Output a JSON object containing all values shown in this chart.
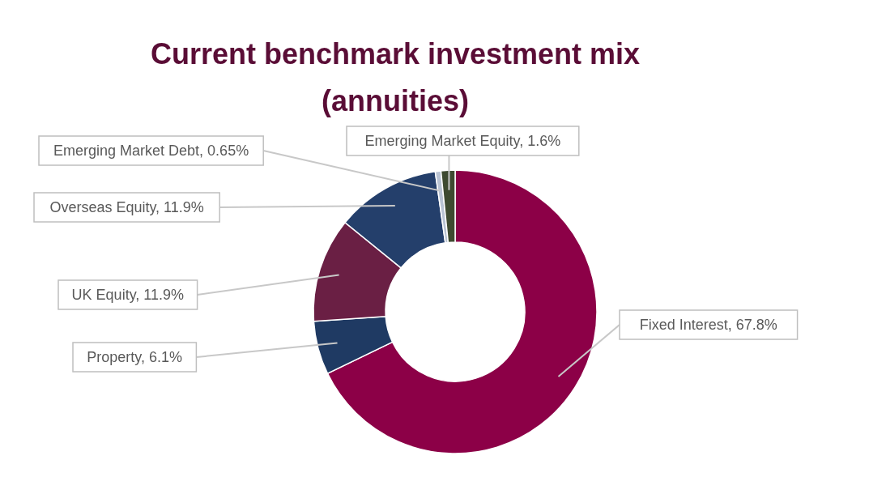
{
  "chart_data": {
    "type": "donut",
    "title": "Current benchmark investment mix\n(annuities)",
    "categories": [
      "Fixed Interest",
      "Property",
      "UK Equity",
      "Overseas Equity",
      "Emerging Market Debt",
      "Emerging Market Equity"
    ],
    "values": [
      67.8,
      6.1,
      11.9,
      11.9,
      0.65,
      1.6
    ],
    "value_labels": [
      "67.8%",
      "6.1%",
      "11.9%",
      "11.9%",
      "0.65%",
      "1.6%"
    ],
    "colors": [
      "#8c0047",
      "#1f3a63",
      "#6a1f44",
      "#243f6b",
      "#b9c3d3",
      "#3e4a30"
    ]
  }
}
